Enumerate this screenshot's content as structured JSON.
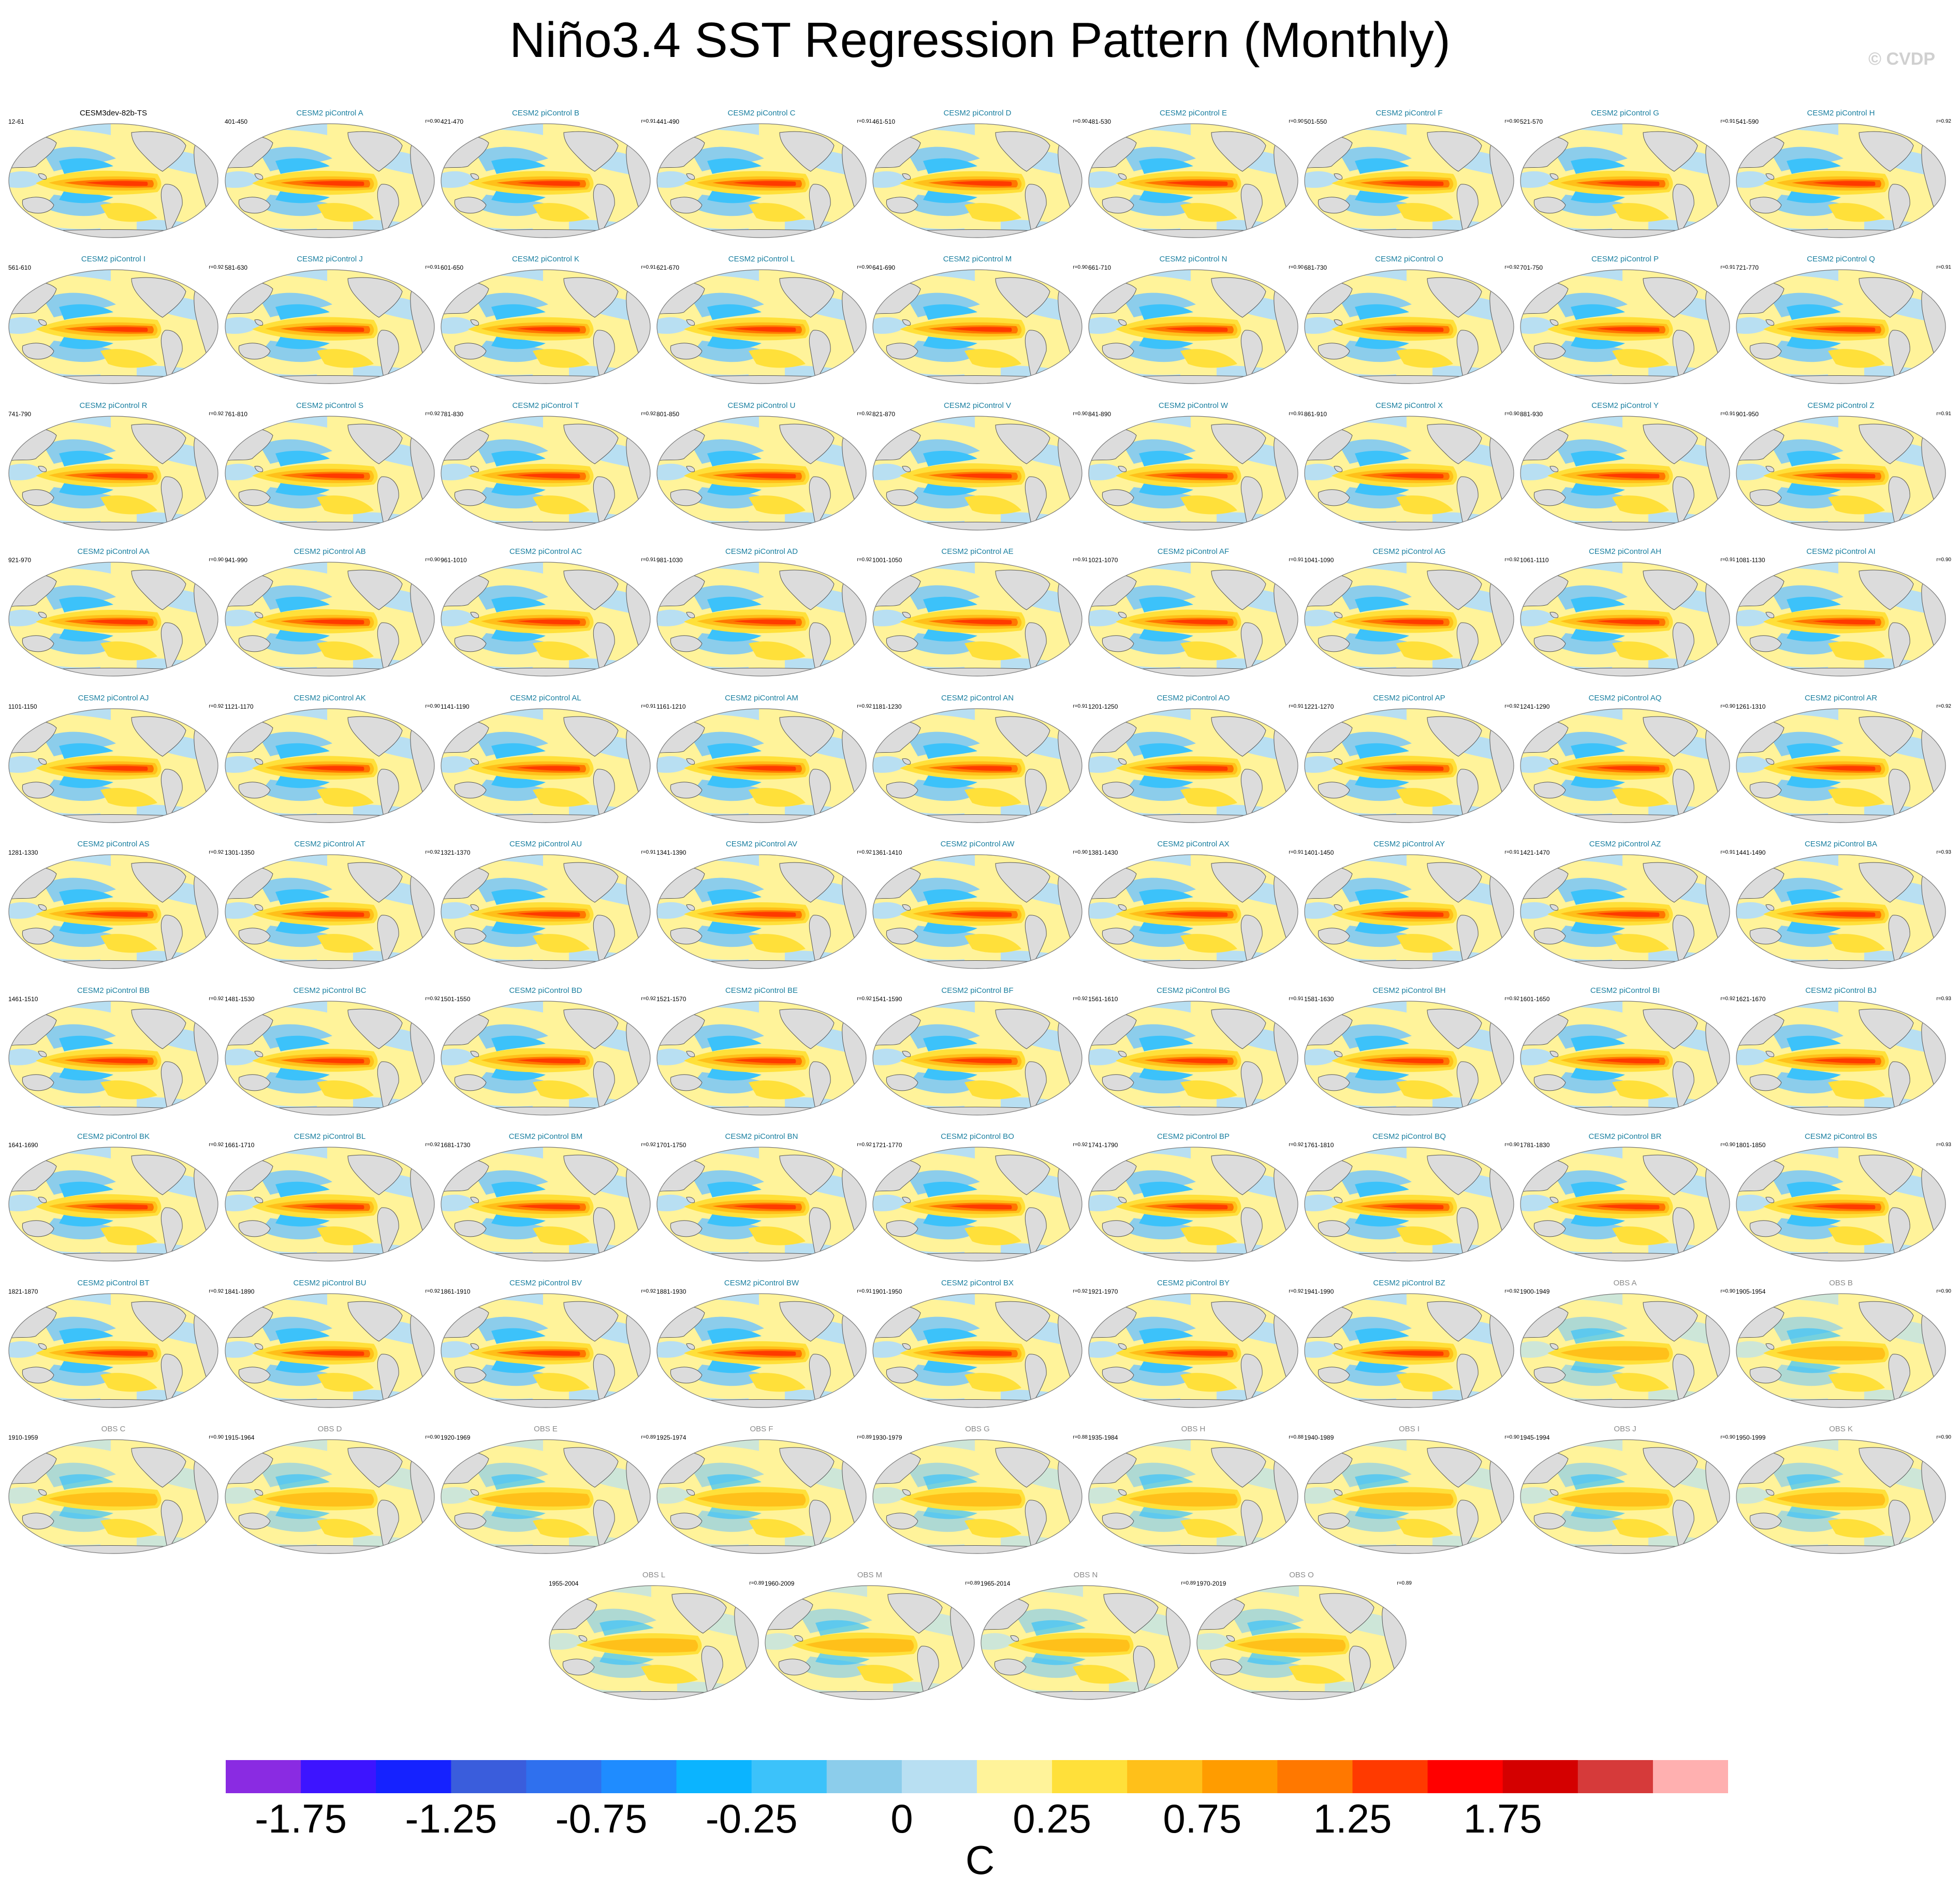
{
  "title": "Niño3.4 SST Regression Pattern (Monthly)",
  "copyright": "© CVDP",
  "chart_data": {
    "type": "heatmap",
    "title": "Niño3.4 SST Regression Pattern (Monthly)",
    "panels": [
      {
        "title": "CESM3dev-82b-TS",
        "period": "12-61",
        "r": "",
        "kind": "base"
      },
      {
        "title": "CESM2 piControl A",
        "period": "401-450",
        "r": "r=0.90",
        "kind": "model"
      },
      {
        "title": "CESM2 piControl B",
        "period": "421-470",
        "r": "r=0.91",
        "kind": "model"
      },
      {
        "title": "CESM2 piControl C",
        "period": "441-490",
        "r": "r=0.91",
        "kind": "model"
      },
      {
        "title": "CESM2 piControl D",
        "period": "461-510",
        "r": "r=0.90",
        "kind": "model"
      },
      {
        "title": "CESM2 piControl E",
        "period": "481-530",
        "r": "r=0.90",
        "kind": "model"
      },
      {
        "title": "CESM2 piControl F",
        "period": "501-550",
        "r": "r=0.90",
        "kind": "model"
      },
      {
        "title": "CESM2 piControl G",
        "period": "521-570",
        "r": "r=0.91",
        "kind": "model"
      },
      {
        "title": "CESM2 piControl H",
        "period": "541-590",
        "r": "r=0.92",
        "kind": "model"
      },
      {
        "title": "CESM2 piControl I",
        "period": "561-610",
        "r": "r=0.92",
        "kind": "model"
      },
      {
        "title": "CESM2 piControl J",
        "period": "581-630",
        "r": "r=0.91",
        "kind": "model"
      },
      {
        "title": "CESM2 piControl K",
        "period": "601-650",
        "r": "r=0.91",
        "kind": "model"
      },
      {
        "title": "CESM2 piControl L",
        "period": "621-670",
        "r": "r=0.90",
        "kind": "model"
      },
      {
        "title": "CESM2 piControl M",
        "period": "641-690",
        "r": "r=0.90",
        "kind": "model"
      },
      {
        "title": "CESM2 piControl N",
        "period": "661-710",
        "r": "r=0.90",
        "kind": "model"
      },
      {
        "title": "CESM2 piControl O",
        "period": "681-730",
        "r": "r=0.92",
        "kind": "model"
      },
      {
        "title": "CESM2 piControl P",
        "period": "701-750",
        "r": "r=0.91",
        "kind": "model"
      },
      {
        "title": "CESM2 piControl Q",
        "period": "721-770",
        "r": "r=0.91",
        "kind": "model"
      },
      {
        "title": "CESM2 piControl R",
        "period": "741-790",
        "r": "r=0.92",
        "kind": "model"
      },
      {
        "title": "CESM2 piControl S",
        "period": "761-810",
        "r": "r=0.92",
        "kind": "model"
      },
      {
        "title": "CESM2 piControl T",
        "period": "781-830",
        "r": "r=0.92",
        "kind": "model"
      },
      {
        "title": "CESM2 piControl U",
        "period": "801-850",
        "r": "r=0.92",
        "kind": "model"
      },
      {
        "title": "CESM2 piControl V",
        "period": "821-870",
        "r": "r=0.90",
        "kind": "model"
      },
      {
        "title": "CESM2 piControl W",
        "period": "841-890",
        "r": "r=0.91",
        "kind": "model"
      },
      {
        "title": "CESM2 piControl X",
        "period": "861-910",
        "r": "r=0.90",
        "kind": "model"
      },
      {
        "title": "CESM2 piControl Y",
        "period": "881-930",
        "r": "r=0.91",
        "kind": "model"
      },
      {
        "title": "CESM2 piControl Z",
        "period": "901-950",
        "r": "r=0.91",
        "kind": "model"
      },
      {
        "title": "CESM2 piControl AA",
        "period": "921-970",
        "r": "r=0.90",
        "kind": "model"
      },
      {
        "title": "CESM2 piControl AB",
        "period": "941-990",
        "r": "r=0.90",
        "kind": "model"
      },
      {
        "title": "CESM2 piControl AC",
        "period": "961-1010",
        "r": "r=0.91",
        "kind": "model"
      },
      {
        "title": "CESM2 piControl AD",
        "period": "981-1030",
        "r": "r=0.92",
        "kind": "model"
      },
      {
        "title": "CESM2 piControl AE",
        "period": "1001-1050",
        "r": "r=0.91",
        "kind": "model"
      },
      {
        "title": "CESM2 piControl AF",
        "period": "1021-1070",
        "r": "r=0.91",
        "kind": "model"
      },
      {
        "title": "CESM2 piControl AG",
        "period": "1041-1090",
        "r": "r=0.92",
        "kind": "model"
      },
      {
        "title": "CESM2 piControl AH",
        "period": "1061-1110",
        "r": "r=0.91",
        "kind": "model"
      },
      {
        "title": "CESM2 piControl AI",
        "period": "1081-1130",
        "r": "r=0.90",
        "kind": "model"
      },
      {
        "title": "CESM2 piControl AJ",
        "period": "1101-1150",
        "r": "r=0.92",
        "kind": "model"
      },
      {
        "title": "CESM2 piControl AK",
        "period": "1121-1170",
        "r": "r=0.90",
        "kind": "model"
      },
      {
        "title": "CESM2 piControl AL",
        "period": "1141-1190",
        "r": "r=0.91",
        "kind": "model"
      },
      {
        "title": "CESM2 piControl AM",
        "period": "1161-1210",
        "r": "r=0.92",
        "kind": "model"
      },
      {
        "title": "CESM2 piControl AN",
        "period": "1181-1230",
        "r": "r=0.91",
        "kind": "model"
      },
      {
        "title": "CESM2 piControl AO",
        "period": "1201-1250",
        "r": "r=0.91",
        "kind": "model"
      },
      {
        "title": "CESM2 piControl AP",
        "period": "1221-1270",
        "r": "r=0.92",
        "kind": "model"
      },
      {
        "title": "CESM2 piControl AQ",
        "period": "1241-1290",
        "r": "r=0.90",
        "kind": "model"
      },
      {
        "title": "CESM2 piControl AR",
        "period": "1261-1310",
        "r": "r=0.92",
        "kind": "model"
      },
      {
        "title": "CESM2 piControl AS",
        "period": "1281-1330",
        "r": "r=0.92",
        "kind": "model"
      },
      {
        "title": "CESM2 piControl AT",
        "period": "1301-1350",
        "r": "r=0.92",
        "kind": "model"
      },
      {
        "title": "CESM2 piControl AU",
        "period": "1321-1370",
        "r": "r=0.91",
        "kind": "model"
      },
      {
        "title": "CESM2 piControl AV",
        "period": "1341-1390",
        "r": "r=0.92",
        "kind": "model"
      },
      {
        "title": "CESM2 piControl AW",
        "period": "1361-1410",
        "r": "r=0.90",
        "kind": "model"
      },
      {
        "title": "CESM2 piControl AX",
        "period": "1381-1430",
        "r": "r=0.91",
        "kind": "model"
      },
      {
        "title": "CESM2 piControl AY",
        "period": "1401-1450",
        "r": "r=0.91",
        "kind": "model"
      },
      {
        "title": "CESM2 piControl AZ",
        "period": "1421-1470",
        "r": "r=0.91",
        "kind": "model"
      },
      {
        "title": "CESM2 piControl BA",
        "period": "1441-1490",
        "r": "r=0.93",
        "kind": "model"
      },
      {
        "title": "CESM2 piControl BB",
        "period": "1461-1510",
        "r": "r=0.92",
        "kind": "model"
      },
      {
        "title": "CESM2 piControl BC",
        "period": "1481-1530",
        "r": "r=0.92",
        "kind": "model"
      },
      {
        "title": "CESM2 piControl BD",
        "period": "1501-1550",
        "r": "r=0.92",
        "kind": "model"
      },
      {
        "title": "CESM2 piControl BE",
        "period": "1521-1570",
        "r": "r=0.92",
        "kind": "model"
      },
      {
        "title": "CESM2 piControl BF",
        "period": "1541-1590",
        "r": "r=0.92",
        "kind": "model"
      },
      {
        "title": "CESM2 piControl BG",
        "period": "1561-1610",
        "r": "r=0.91",
        "kind": "model"
      },
      {
        "title": "CESM2 piControl BH",
        "period": "1581-1630",
        "r": "r=0.92",
        "kind": "model"
      },
      {
        "title": "CESM2 piControl BI",
        "period": "1601-1650",
        "r": "r=0.92",
        "kind": "model"
      },
      {
        "title": "CESM2 piControl BJ",
        "period": "1621-1670",
        "r": "r=0.93",
        "kind": "model"
      },
      {
        "title": "CESM2 piControl BK",
        "period": "1641-1690",
        "r": "r=0.92",
        "kind": "model"
      },
      {
        "title": "CESM2 piControl BL",
        "period": "1661-1710",
        "r": "r=0.92",
        "kind": "model"
      },
      {
        "title": "CESM2 piControl BM",
        "period": "1681-1730",
        "r": "r=0.92",
        "kind": "model"
      },
      {
        "title": "CESM2 piControl BN",
        "period": "1701-1750",
        "r": "r=0.92",
        "kind": "model"
      },
      {
        "title": "CESM2 piControl BO",
        "period": "1721-1770",
        "r": "r=0.92",
        "kind": "model"
      },
      {
        "title": "CESM2 piControl BP",
        "period": "1741-1790",
        "r": "r=0.92",
        "kind": "model"
      },
      {
        "title": "CESM2 piControl BQ",
        "period": "1761-1810",
        "r": "r=0.90",
        "kind": "model"
      },
      {
        "title": "CESM2 piControl BR",
        "period": "1781-1830",
        "r": "r=0.90",
        "kind": "model"
      },
      {
        "title": "CESM2 piControl BS",
        "period": "1801-1850",
        "r": "r=0.93",
        "kind": "model"
      },
      {
        "title": "CESM2 piControl BT",
        "period": "1821-1870",
        "r": "r=0.92",
        "kind": "model"
      },
      {
        "title": "CESM2 piControl BU",
        "period": "1841-1890",
        "r": "r=0.92",
        "kind": "model"
      },
      {
        "title": "CESM2 piControl BV",
        "period": "1861-1910",
        "r": "r=0.92",
        "kind": "model"
      },
      {
        "title": "CESM2 piControl BW",
        "period": "1881-1930",
        "r": "r=0.91",
        "kind": "model"
      },
      {
        "title": "CESM2 piControl BX",
        "period": "1901-1950",
        "r": "r=0.92",
        "kind": "model"
      },
      {
        "title": "CESM2 piControl BY",
        "period": "1921-1970",
        "r": "r=0.92",
        "kind": "model"
      },
      {
        "title": "CESM2 piControl BZ",
        "period": "1941-1990",
        "r": "r=0.92",
        "kind": "model"
      },
      {
        "title": "OBS A",
        "period": "1900-1949",
        "r": "r=0.90",
        "kind": "obs"
      },
      {
        "title": "OBS B",
        "period": "1905-1954",
        "r": "r=0.90",
        "kind": "obs"
      },
      {
        "title": "OBS C",
        "period": "1910-1959",
        "r": "r=0.90",
        "kind": "obs"
      },
      {
        "title": "OBS D",
        "period": "1915-1964",
        "r": "r=0.90",
        "kind": "obs"
      },
      {
        "title": "OBS E",
        "period": "1920-1969",
        "r": "r=0.89",
        "kind": "obs"
      },
      {
        "title": "OBS F",
        "period": "1925-1974",
        "r": "r=0.89",
        "kind": "obs"
      },
      {
        "title": "OBS G",
        "period": "1930-1979",
        "r": "r=0.88",
        "kind": "obs"
      },
      {
        "title": "OBS H",
        "period": "1935-1984",
        "r": "r=0.88",
        "kind": "obs"
      },
      {
        "title": "OBS I",
        "period": "1940-1989",
        "r": "r=0.90",
        "kind": "obs"
      },
      {
        "title": "OBS J",
        "period": "1945-1994",
        "r": "r=0.90",
        "kind": "obs"
      },
      {
        "title": "OBS K",
        "period": "1950-1999",
        "r": "r=0.90",
        "kind": "obs"
      },
      {
        "title": "OBS L",
        "period": "1955-2004",
        "r": "r=0.89",
        "kind": "obs"
      },
      {
        "title": "OBS M",
        "period": "1960-2009",
        "r": "r=0.89",
        "kind": "obs"
      },
      {
        "title": "OBS N",
        "period": "1965-2014",
        "r": "r=0.89",
        "kind": "obs"
      },
      {
        "title": "OBS O",
        "period": "1970-2019",
        "r": "r=0.89",
        "kind": "obs"
      }
    ],
    "colorbar": {
      "units": "C",
      "tick_labels": [
        "-1.75",
        "-1.25",
        "-0.75",
        "-0.25",
        "0",
        "0.25",
        "0.75",
        "1.25",
        "1.75"
      ],
      "colors": [
        "#8a2be2",
        "#3d14ff",
        "#1522ff",
        "#3a5ddc",
        "#2f70ee",
        "#1f8cff",
        "#0bb4ff",
        "#3cc2fa",
        "#8ccdeb",
        "#b8dff2",
        "#fff39a",
        "#ffe03a",
        "#ffc01a",
        "#ff9c00",
        "#ff7800",
        "#ff3a00",
        "#ff0000",
        "#d40000",
        "#d63a3a",
        "#ffb0b0"
      ]
    },
    "map_colors": {
      "land": "#dcdcdc",
      "coast": "#555555",
      "warm_weak": "#fff39a",
      "warm_mid": "#ffe03a",
      "warm_strong": "#ffc01a",
      "hot": "#ff7800",
      "hottest": "#ff3a00",
      "cool_weak": "#b8dff2",
      "cool_mid": "#8ccdeb",
      "cool_strong": "#3cc2fa"
    }
  }
}
